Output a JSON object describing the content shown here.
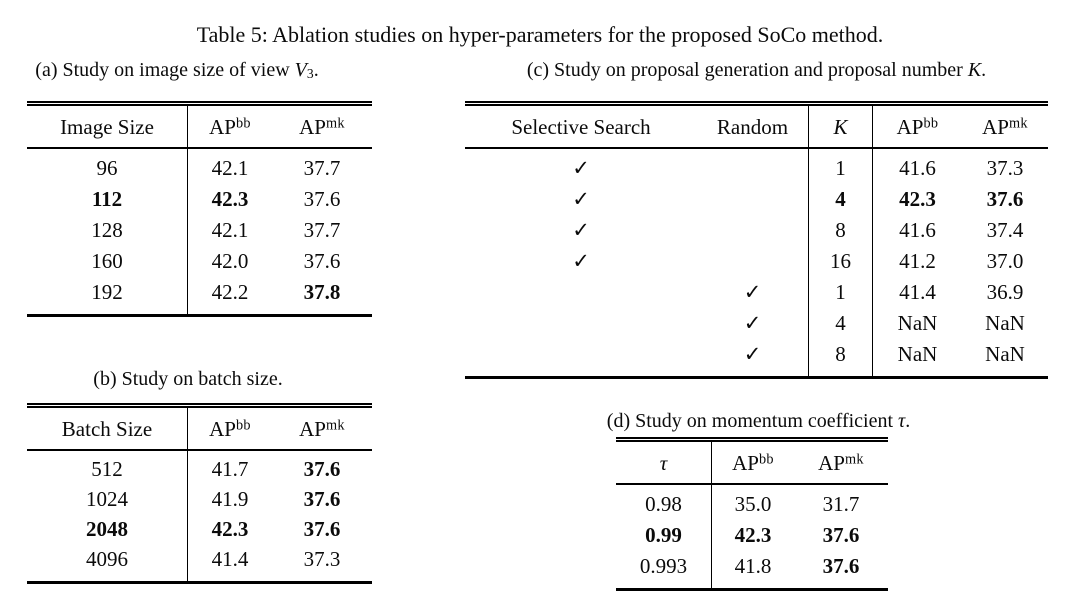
{
  "title": "Table 5: Ablation studies on hyper-parameters for the proposed SoCo method.",
  "tables": {
    "a": {
      "caption": "(a) Study on image size of view $V_3$.",
      "headers": [
        "Image Size",
        "AP^bb",
        "AP^mk"
      ],
      "rows": [
        [
          "96",
          "42.1",
          "37.7"
        ],
        [
          "**112**",
          "**42.3**",
          "37.6"
        ],
        [
          "128",
          "42.1",
          "37.7"
        ],
        [
          "160",
          "42.0",
          "37.6"
        ],
        [
          "192",
          "42.2",
          "**37.8**"
        ]
      ]
    },
    "b": {
      "caption": "(b) Study on batch size.",
      "headers": [
        "Batch Size",
        "AP^bb",
        "AP^mk"
      ],
      "rows": [
        [
          "512",
          "41.7",
          "**37.6**"
        ],
        [
          "1024",
          "41.9",
          "**37.6**"
        ],
        [
          "**2048**",
          "**42.3**",
          "**37.6**"
        ],
        [
          "4096",
          "41.4",
          "37.3"
        ]
      ]
    },
    "c": {
      "caption": "(c) Study on proposal generation and proposal number $K$.",
      "headers": [
        "Selective Search",
        "Random",
        "$K$",
        "AP^bb",
        "AP^mk"
      ],
      "rows": [
        [
          "✓",
          "",
          "1",
          "41.6",
          "37.3"
        ],
        [
          "✓",
          "",
          "**4**",
          "**42.3**",
          "**37.6**"
        ],
        [
          "✓",
          "",
          "8",
          "41.6",
          "37.4"
        ],
        [
          "✓",
          "",
          "16",
          "41.2",
          "37.0"
        ],
        [
          "",
          "✓",
          "1",
          "41.4",
          "36.9"
        ],
        [
          "",
          "✓",
          "4",
          "NaN",
          "NaN"
        ],
        [
          "",
          "✓",
          "8",
          "NaN",
          "NaN"
        ]
      ]
    },
    "d": {
      "caption": "(d) Study on momentum coefficient $τ$.",
      "headers": [
        "$τ$",
        "AP^bb",
        "AP^mk"
      ],
      "rows": [
        [
          "0.98",
          "35.0",
          "31.7"
        ],
        [
          "**0.99**",
          "**42.3**",
          "**37.6**"
        ],
        [
          "0.993",
          "41.8",
          "**37.6**"
        ]
      ]
    }
  },
  "icons": {
    "checkmark": "✓"
  },
  "colors": {
    "text": "#0b0b0b",
    "background": "#ffffff",
    "rule": "#000000"
  }
}
